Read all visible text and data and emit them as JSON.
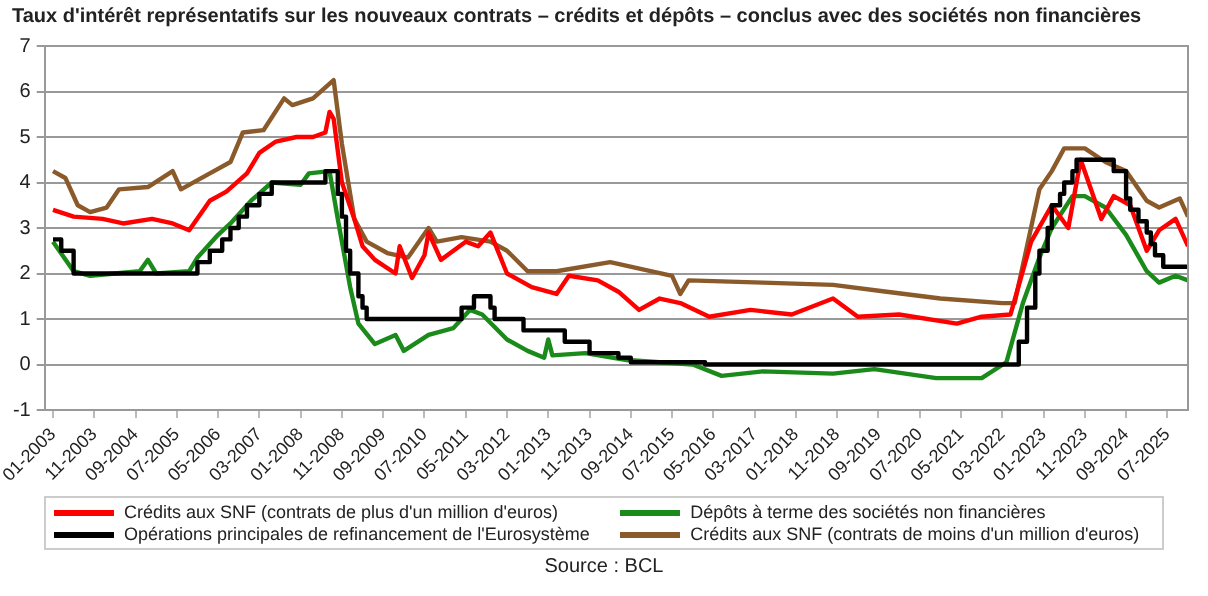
{
  "chart_data": {
    "type": "line",
    "title": "Taux d'intérêt représentatifs sur les nouveaux contrats – crédits et dépôts – conclus avec des sociétés non financières",
    "xlim": [
      "2002-11",
      "2025-12"
    ],
    "xticks": [
      {
        "value": "2003-01",
        "label": "01-2003"
      },
      {
        "value": "2003-11",
        "label": "11-2003"
      },
      {
        "value": "2004-09",
        "label": "09-2004"
      },
      {
        "value": "2005-07",
        "label": "07-2005"
      },
      {
        "value": "2006-05",
        "label": "05-2006"
      },
      {
        "value": "2007-03",
        "label": "03-2007"
      },
      {
        "value": "2008-01",
        "label": "01-2008"
      },
      {
        "value": "2008-11",
        "label": "11-2008"
      },
      {
        "value": "2009-09",
        "label": "09-2009"
      },
      {
        "value": "2010-07",
        "label": "07-2010"
      },
      {
        "value": "2011-05",
        "label": "05-2011"
      },
      {
        "value": "2012-03",
        "label": "03-2012"
      },
      {
        "value": "2013-01",
        "label": "01-2013"
      },
      {
        "value": "2013-11",
        "label": "11-2013"
      },
      {
        "value": "2014-09",
        "label": "09-2014"
      },
      {
        "value": "2015-07",
        "label": "07-2015"
      },
      {
        "value": "2016-05",
        "label": "05-2016"
      },
      {
        "value": "2017-03",
        "label": "03-2017"
      },
      {
        "value": "2018-01",
        "label": "01-2018"
      },
      {
        "value": "2018-11",
        "label": "11-2018"
      },
      {
        "value": "2019-09",
        "label": "09-2019"
      },
      {
        "value": "2020-07",
        "label": "07-2020"
      },
      {
        "value": "2021-05",
        "label": "05-2021"
      },
      {
        "value": "2022-03",
        "label": "03-2022"
      },
      {
        "value": "2023-01",
        "label": "01-2023"
      },
      {
        "value": "2023-11",
        "label": "11-2023"
      },
      {
        "value": "2024-09",
        "label": "09-2024"
      },
      {
        "value": "2025-07",
        "label": "07-2025"
      }
    ],
    "ylim": [
      -1,
      7
    ],
    "yticks": [
      -1,
      0,
      1,
      2,
      3,
      4,
      5,
      6,
      7
    ],
    "grid": "y",
    "legend": "bottom",
    "marker": "none",
    "line_style": "solid",
    "annotations": [
      "Source : BCL"
    ],
    "series": [
      {
        "name": "Crédits aux SNF (contrats de plus d'un million d'euros)",
        "color": "#ff0000",
        "type": "line",
        "x": [
          "2003-01",
          "2003-06",
          "2004-01",
          "2004-06",
          "2005-01",
          "2005-06",
          "2005-10",
          "2006-03",
          "2006-07",
          "2006-12",
          "2007-03",
          "2007-07",
          "2007-12",
          "2008-04",
          "2008-07",
          "2008-08",
          "2008-09",
          "2008-11",
          "2009-02",
          "2009-04",
          "2009-07",
          "2009-12",
          "2010-01",
          "2010-04",
          "2010-07",
          "2010-08",
          "2010-11",
          "2011-05",
          "2011-08",
          "2011-11",
          "2012-03",
          "2012-09",
          "2013-03",
          "2013-06",
          "2014-01",
          "2014-06",
          "2014-11",
          "2015-04",
          "2015-09",
          "2016-04",
          "2017-02",
          "2017-12",
          "2018-10",
          "2019-04",
          "2020-02",
          "2021-04",
          "2021-10",
          "2022-05",
          "2022-10",
          "2023-03",
          "2023-07",
          "2023-10",
          "2024-03",
          "2024-06",
          "2024-10",
          "2025-02",
          "2025-05",
          "2025-09",
          "2025-12"
        ],
        "values": [
          3.4,
          3.25,
          3.2,
          3.1,
          3.2,
          3.1,
          2.95,
          3.6,
          3.8,
          4.2,
          4.65,
          4.9,
          5.0,
          5.0,
          5.1,
          5.55,
          5.4,
          4.0,
          3.2,
          2.6,
          2.3,
          2.0,
          2.6,
          1.9,
          2.4,
          2.9,
          2.3,
          2.7,
          2.6,
          2.9,
          2.0,
          1.7,
          1.55,
          1.95,
          1.85,
          1.6,
          1.2,
          1.45,
          1.35,
          1.05,
          1.2,
          1.1,
          1.45,
          1.05,
          1.1,
          0.9,
          1.05,
          1.1,
          2.7,
          3.5,
          3.0,
          4.5,
          3.2,
          3.7,
          3.5,
          2.5,
          2.95,
          3.2,
          2.6
        ]
      },
      {
        "name": "Dépôts à terme des sociétés non financières",
        "color": "#1a8a1a",
        "type": "line",
        "x": [
          "2003-01",
          "2003-06",
          "2003-10",
          "2004-10",
          "2004-12",
          "2005-02",
          "2005-10",
          "2005-12",
          "2006-05",
          "2006-08",
          "2007-01",
          "2007-06",
          "2008-01",
          "2008-03",
          "2008-08",
          "2008-10",
          "2009-01",
          "2009-03",
          "2009-07",
          "2009-12",
          "2010-02",
          "2010-08",
          "2011-02",
          "2011-06",
          "2011-09",
          "2012-03",
          "2012-08",
          "2012-12",
          "2013-01",
          "2013-02",
          "2013-10",
          "2014-08",
          "2015-12",
          "2016-07",
          "2017-05",
          "2018-10",
          "2019-08",
          "2020-11",
          "2021-10",
          "2022-04",
          "2022-08",
          "2022-12",
          "2023-03",
          "2023-08",
          "2023-11",
          "2024-04",
          "2024-09",
          "2025-02",
          "2025-05",
          "2025-09",
          "2025-12"
        ],
        "values": [
          2.7,
          2.05,
          1.95,
          2.05,
          2.3,
          2.0,
          2.05,
          2.35,
          2.85,
          3.1,
          3.6,
          4.0,
          3.95,
          4.2,
          4.25,
          3.2,
          1.7,
          0.9,
          0.45,
          0.65,
          0.3,
          0.65,
          0.8,
          1.2,
          1.1,
          0.55,
          0.3,
          0.15,
          0.55,
          0.2,
          0.25,
          0.1,
          0.0,
          -0.25,
          -0.15,
          -0.2,
          -0.1,
          -0.3,
          -0.3,
          0.05,
          1.35,
          2.35,
          3.0,
          3.7,
          3.7,
          3.45,
          2.85,
          2.05,
          1.8,
          1.95,
          1.85
        ]
      },
      {
        "name": "Opérations principales de refinancement de l'Eurosystème",
        "color": "#000000",
        "type": "step",
        "x": [
          "2003-01",
          "2003-03",
          "2003-06",
          "2005-12",
          "2006-03",
          "2006-06",
          "2006-08",
          "2006-10",
          "2006-12",
          "2007-03",
          "2007-06",
          "2008-07",
          "2008-10",
          "2008-11",
          "2008-12",
          "2009-01",
          "2009-03",
          "2009-04",
          "2009-05",
          "2011-04",
          "2011-07",
          "2011-11",
          "2011-12",
          "2012-07",
          "2013-05",
          "2013-11",
          "2014-06",
          "2014-09",
          "2016-03",
          "2022-07",
          "2022-09",
          "2022-11",
          "2022-12",
          "2023-02",
          "2023-03",
          "2023-05",
          "2023-06",
          "2023-08",
          "2023-09",
          "2024-06",
          "2024-09",
          "2024-10",
          "2024-12",
          "2025-02",
          "2025-03",
          "2025-04",
          "2025-06",
          "2025-12"
        ],
        "values": [
          2.75,
          2.5,
          2.0,
          2.25,
          2.5,
          2.75,
          3.0,
          3.25,
          3.5,
          3.75,
          4.0,
          4.25,
          3.75,
          3.25,
          2.5,
          2.0,
          1.5,
          1.25,
          1.0,
          1.25,
          1.5,
          1.25,
          1.0,
          0.75,
          0.5,
          0.25,
          0.15,
          0.05,
          0.0,
          0.5,
          1.25,
          2.0,
          2.5,
          3.0,
          3.5,
          3.75,
          4.0,
          4.25,
          4.5,
          4.25,
          3.65,
          3.4,
          3.15,
          2.9,
          2.65,
          2.4,
          2.15,
          2.15
        ]
      },
      {
        "name": "Crédits aux SNF (contrats de moins d'un million d'euros)",
        "color": "#8b5a2b",
        "type": "line",
        "x": [
          "2003-01",
          "2003-04",
          "2003-07",
          "2003-10",
          "2004-02",
          "2004-05",
          "2004-12",
          "2005-06",
          "2005-08",
          "2006-03",
          "2006-08",
          "2006-11",
          "2007-04",
          "2007-09",
          "2007-11",
          "2008-04",
          "2008-09",
          "2008-11",
          "2009-02",
          "2009-05",
          "2009-10",
          "2010-03",
          "2010-08",
          "2010-10",
          "2011-04",
          "2011-11",
          "2012-03",
          "2012-08",
          "2013-03",
          "2014-04",
          "2015-07",
          "2015-09",
          "2015-11",
          "2017-05",
          "2018-10",
          "2019-11",
          "2020-12",
          "2022-03",
          "2022-06",
          "2022-12",
          "2023-03",
          "2023-06",
          "2023-11",
          "2024-04",
          "2024-09",
          "2025-02",
          "2025-05",
          "2025-10",
          "2025-12"
        ],
        "values": [
          4.25,
          4.1,
          3.5,
          3.35,
          3.45,
          3.85,
          3.9,
          4.25,
          3.85,
          4.2,
          4.45,
          5.1,
          5.15,
          5.85,
          5.7,
          5.85,
          6.25,
          4.85,
          3.2,
          2.7,
          2.45,
          2.35,
          3.0,
          2.7,
          2.8,
          2.7,
          2.5,
          2.05,
          2.05,
          2.25,
          1.95,
          1.55,
          1.85,
          1.8,
          1.75,
          1.6,
          1.45,
          1.35,
          1.35,
          3.85,
          4.25,
          4.75,
          4.75,
          4.45,
          4.25,
          3.6,
          3.45,
          3.65,
          3.25
        ]
      }
    ]
  }
}
